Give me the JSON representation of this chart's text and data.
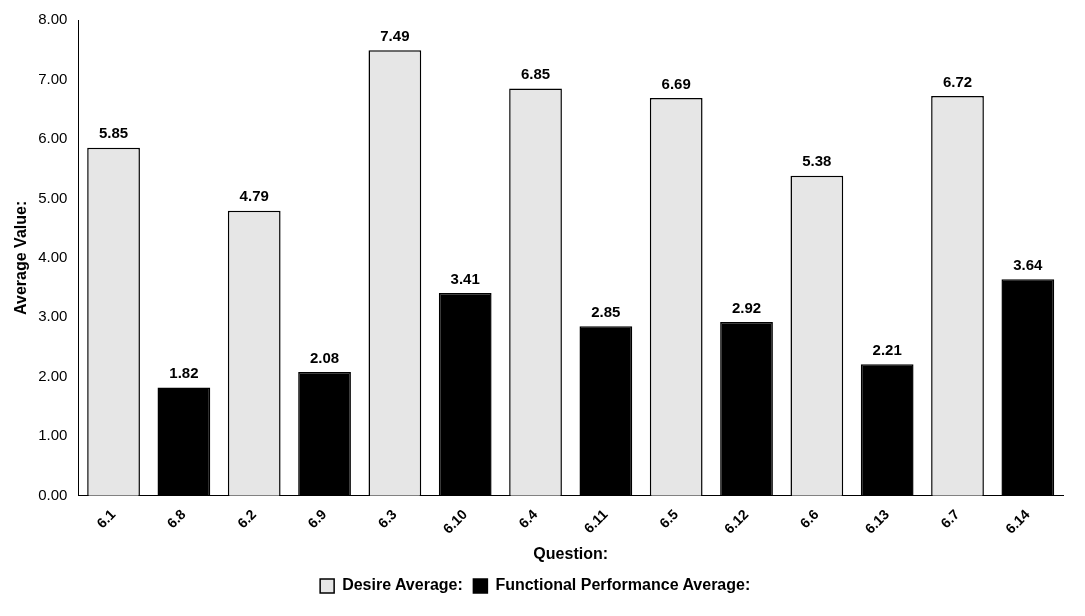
{
  "chart_data": {
    "type": "bar",
    "xlabel": "Question:",
    "ylabel": "Average Value:",
    "categories": [
      "6.1",
      "6.8",
      "6.2",
      "6.9",
      "6.3",
      "6.10",
      "6.4",
      "6.11",
      "6.5",
      "6.12",
      "6.6",
      "6.13",
      "6.7",
      "6.14"
    ],
    "series": [
      {
        "name": "Desire Average:",
        "color": "#e6e6e6",
        "values": [
          5.85,
          null,
          4.79,
          null,
          7.49,
          null,
          6.85,
          null,
          6.69,
          null,
          5.38,
          null,
          6.72,
          null
        ]
      },
      {
        "name": "Functional Performance Average:",
        "color": "#000000",
        "values": [
          null,
          1.82,
          null,
          2.08,
          null,
          3.41,
          null,
          2.85,
          null,
          2.92,
          null,
          2.21,
          null,
          3.64
        ]
      }
    ],
    "ylim": [
      0,
      8
    ],
    "yticks": [
      {
        "value": 0,
        "label": "0.00"
      },
      {
        "value": 1,
        "label": "1.00"
      },
      {
        "value": 2,
        "label": "2.00"
      },
      {
        "value": 3,
        "label": "3.00"
      },
      {
        "value": 4,
        "label": "4.00"
      },
      {
        "value": 5,
        "label": "5.00"
      },
      {
        "value": 6,
        "label": "6.00"
      },
      {
        "value": 7,
        "label": "7.00"
      },
      {
        "value": 8,
        "label": "8.00"
      }
    ],
    "grid": false,
    "legend": "bottom",
    "data_labels": true
  }
}
